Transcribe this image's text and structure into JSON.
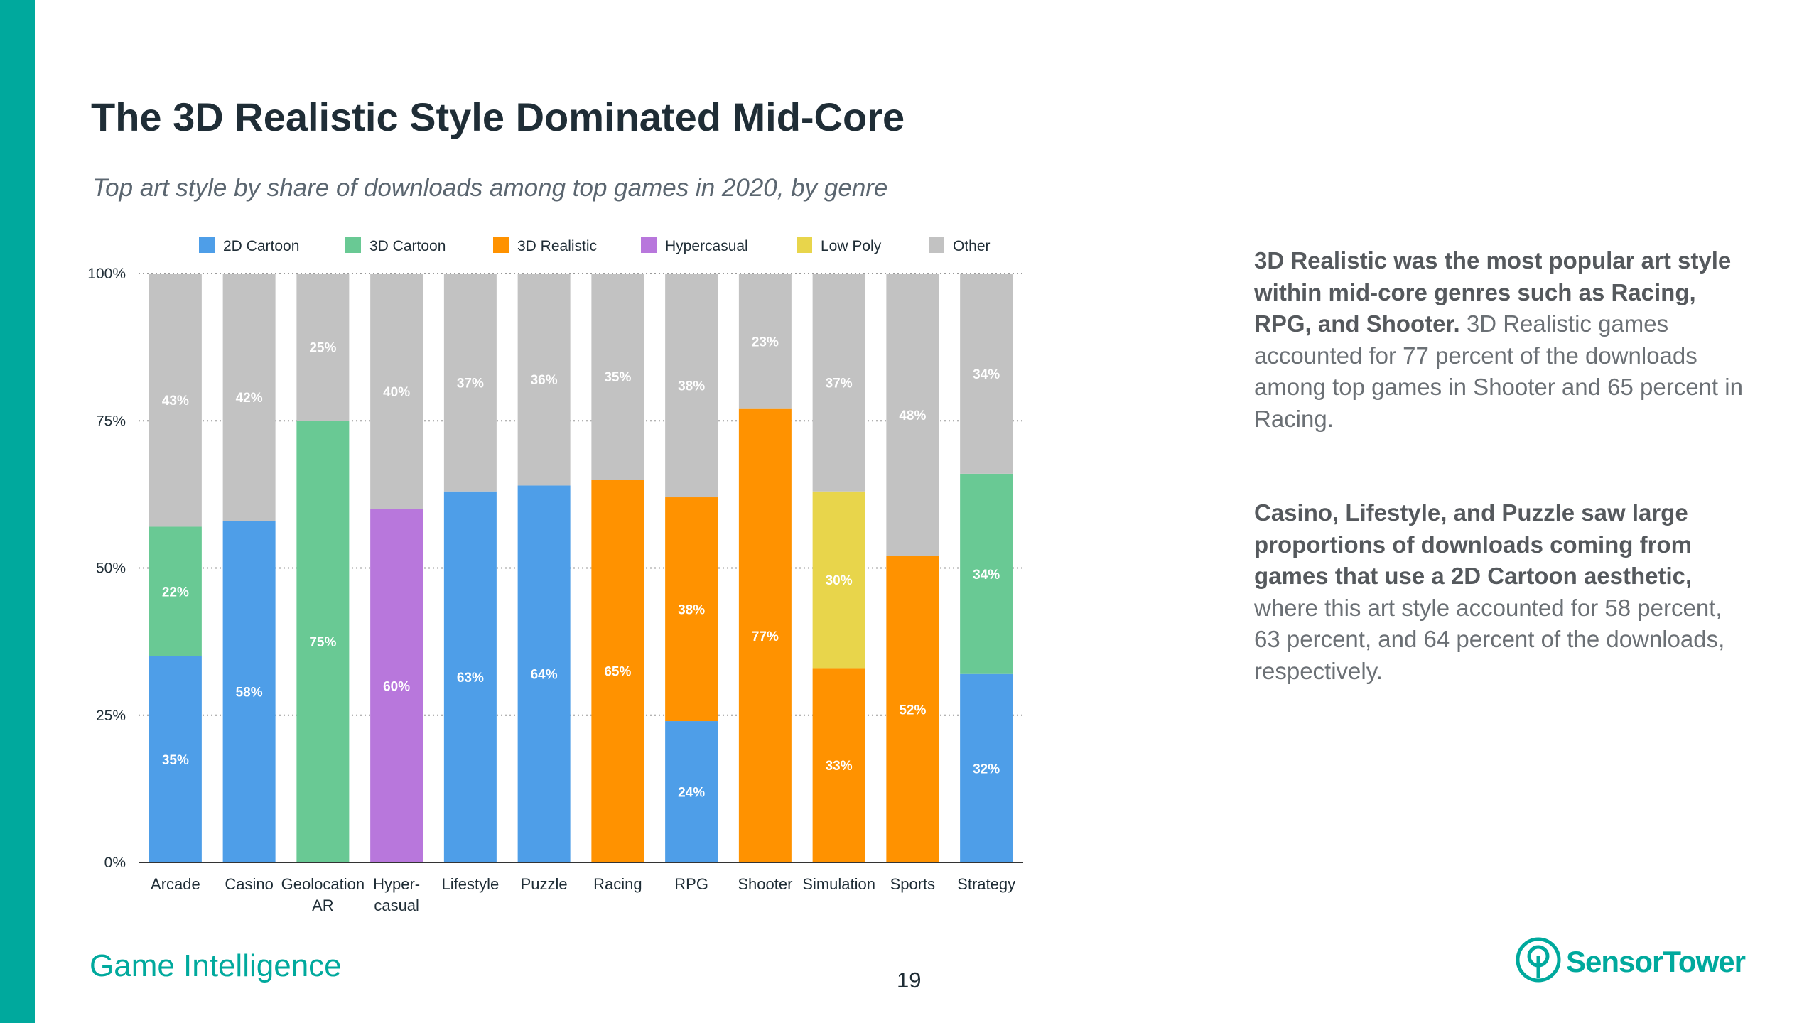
{
  "slide": {
    "title": "The 3D Realistic Style Dominated Mid-Core",
    "subtitle": "Top art style by share of downloads among top games in 2020, by genre",
    "footer_brand": "Game Intelligence",
    "page_number": "19",
    "logo_text": "SensorTower",
    "accent_color": "#00a99d"
  },
  "insights": [
    {
      "bold": "3D Realistic was the most popular art style within mid-core genres  such as Racing, RPG, and Shooter.",
      "text": " 3D Realistic games accounted for 77 percent of the downloads among top games in Shooter and 65 percent in Racing."
    },
    {
      "bold": "Casino, Lifestyle, and Puzzle saw large proportions of downloads coming from games that use a 2D Cartoon aesthetic,",
      "text": " where this art style accounted for 58 percent, 63 percent, and 64 percent of the downloads, respectively."
    }
  ],
  "chart_data": {
    "type": "bar",
    "stacked": true,
    "categories": [
      "Arcade",
      "Casino",
      "Geolocation AR",
      "Hyper-casual",
      "Lifestyle",
      "Puzzle",
      "Racing",
      "RPG",
      "Shooter",
      "Simulation",
      "Sports",
      "Strategy"
    ],
    "category_lines": [
      [
        "Arcade"
      ],
      [
        "Casino"
      ],
      [
        "Geolocation",
        "AR"
      ],
      [
        "Hyper-",
        "casual"
      ],
      [
        "Lifestyle"
      ],
      [
        "Puzzle"
      ],
      [
        "Racing"
      ],
      [
        "RPG"
      ],
      [
        "Shooter"
      ],
      [
        "Simulation"
      ],
      [
        "Sports"
      ],
      [
        "Strategy"
      ]
    ],
    "series": [
      {
        "name": "2D Cartoon",
        "color": "#4e9ee8",
        "values": [
          35,
          58,
          0,
          0,
          63,
          64,
          0,
          24,
          0,
          0,
          0,
          32
        ]
      },
      {
        "name": "3D Cartoon",
        "color": "#69c994",
        "values": [
          22,
          0,
          75,
          0,
          0,
          0,
          0,
          0,
          0,
          0,
          0,
          34
        ]
      },
      {
        "name": "3D Realistic",
        "color": "#ff9200",
        "values": [
          0,
          0,
          0,
          0,
          0,
          0,
          65,
          38,
          77,
          33,
          52,
          0
        ]
      },
      {
        "name": "Hypercasual",
        "color": "#b877dc",
        "values": [
          0,
          0,
          0,
          60,
          0,
          0,
          0,
          0,
          0,
          0,
          0,
          0
        ]
      },
      {
        "name": "Low Poly",
        "color": "#e8d54b",
        "values": [
          0,
          0,
          0,
          0,
          0,
          0,
          0,
          0,
          0,
          30,
          0,
          0
        ]
      },
      {
        "name": "Other",
        "color": "#c2c2c2",
        "values": [
          43,
          42,
          25,
          40,
          37,
          36,
          35,
          38,
          23,
          37,
          48,
          34
        ]
      }
    ],
    "ylim": [
      0,
      100
    ],
    "yticks": [
      "0%",
      "25%",
      "50%",
      "75%",
      "100%"
    ],
    "legend_position": "top",
    "grid": "dotted horizontal"
  }
}
